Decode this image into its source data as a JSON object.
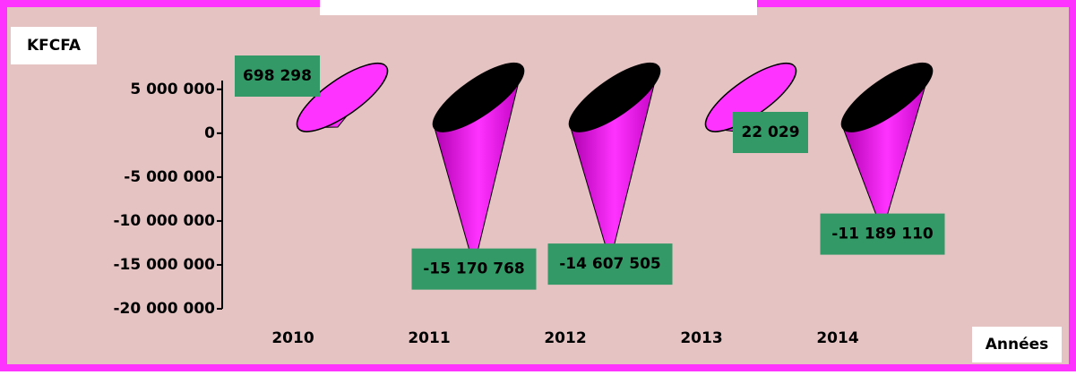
{
  "chart_data": {
    "type": "cone",
    "y_axis_label": "KFCFA",
    "x_axis_label": "Années",
    "categories": [
      "2010",
      "2011",
      "2012",
      "2013",
      "2014"
    ],
    "values": [
      698298,
      -15170768,
      -14607505,
      22029,
      -11189110
    ],
    "value_labels": [
      "698 298",
      "-15 170 768",
      "-14 607 505",
      "22 029",
      "-11 189 110"
    ],
    "color": "#ff33ff",
    "ylim": [
      -20000000,
      6000000
    ],
    "yticks": [
      {
        "value": 5000000,
        "label": "5 000 000"
      },
      0,
      {
        "value": -5000000,
        "label": "-5 000 000"
      },
      {
        "value": -10000000,
        "label": "-10 000 000"
      },
      {
        "value": -15000000,
        "label": "-15 000 000"
      },
      {
        "value": -20000000,
        "label": "-20 000 000"
      }
    ]
  }
}
